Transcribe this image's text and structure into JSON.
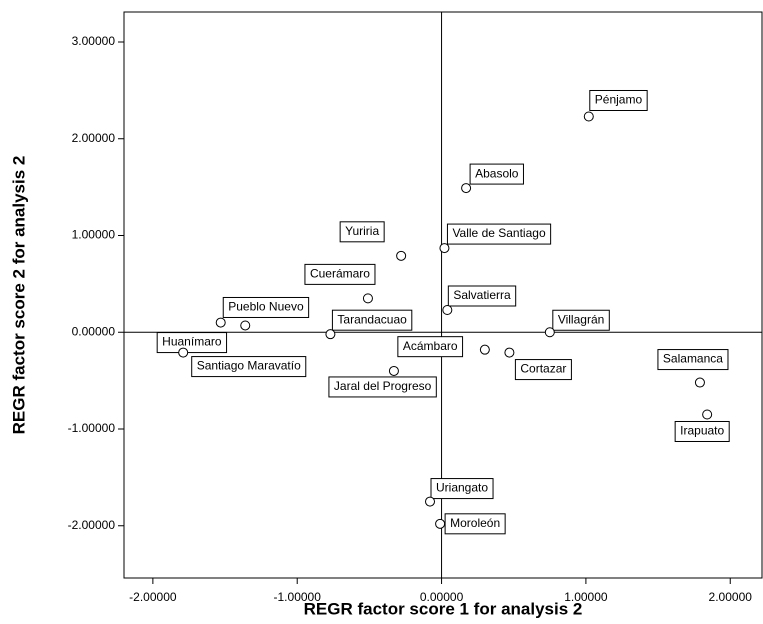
{
  "chart_data": {
    "type": "scatter",
    "xlabel": "REGR factor score   1 for analysis 2",
    "ylabel": "REGR factor score   2 for analysis 2",
    "xlim": [
      -2.2,
      2.22
    ],
    "ylim": [
      -2.54,
      3.31
    ],
    "xticks": [
      {
        "value": -2,
        "label": "-2.00000"
      },
      {
        "value": -1,
        "label": "-1.00000"
      },
      {
        "value": 0,
        "label": "0.00000"
      },
      {
        "value": 1,
        "label": "1.00000"
      },
      {
        "value": 2,
        "label": "2.00000"
      }
    ],
    "yticks": [
      {
        "value": -2,
        "label": "-2.00000"
      },
      {
        "value": -1,
        "label": "-1.00000"
      },
      {
        "value": 0,
        "label": "0.00000"
      },
      {
        "value": 1,
        "label": "1.00000"
      },
      {
        "value": 2,
        "label": "2.00000"
      },
      {
        "value": 3,
        "label": "3.00000"
      }
    ],
    "labels": [
      "Pénjamo",
      "Abasolo",
      "Valle de Santiago",
      "Yuriria",
      "Cuerámaro",
      "Salvatierra",
      "Pueblo Nuevo",
      "Santiago Maravatío",
      "Huanímaro",
      "Tarandacuao",
      "Villagrán",
      "Acámbaro",
      "Cortazar",
      "Jaral del Progreso",
      "Salamanca",
      "Irapuato",
      "Uriangato",
      "Moroleón"
    ],
    "x": [
      1.02,
      0.17,
      0.02,
      -0.28,
      -0.51,
      0.04,
      -1.36,
      -1.53,
      -1.79,
      -0.77,
      0.75,
      0.3,
      0.47,
      -0.33,
      1.79,
      1.84,
      -0.08,
      -0.01
    ],
    "y": [
      2.23,
      1.49,
      0.87,
      0.79,
      0.35,
      0.23,
      0.07,
      0.1,
      -0.21,
      -0.02,
      0.0,
      -0.18,
      -0.21,
      -0.4,
      -0.52,
      -0.85,
      -1.75,
      -1.98
    ]
  }
}
